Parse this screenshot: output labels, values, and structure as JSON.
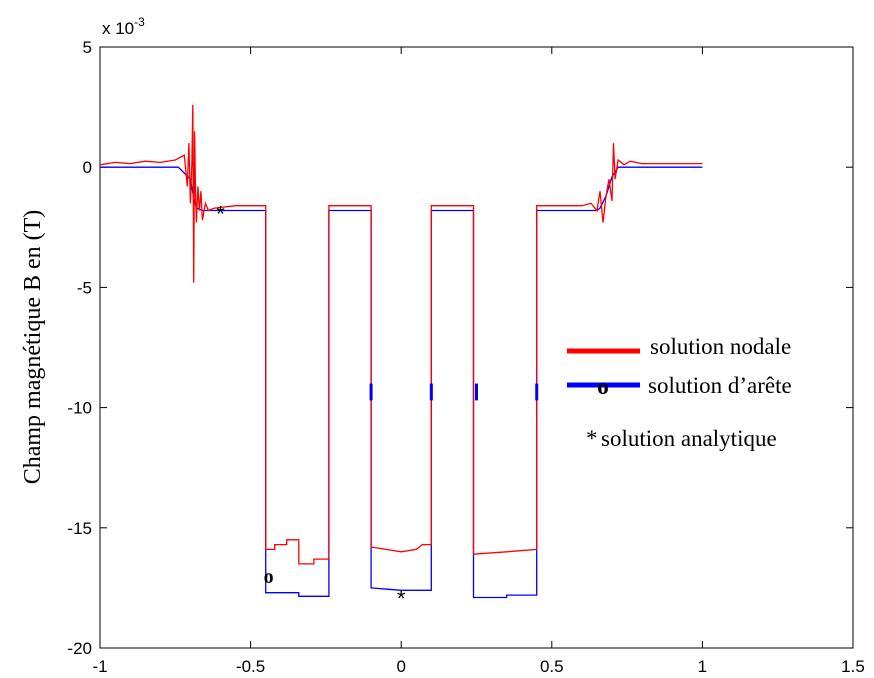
{
  "chart_data": {
    "type": "line",
    "ylabel": "Champ magnétique B en (T)",
    "xlabel": "",
    "multiplier_text": "x 10",
    "multiplier_exp": "-3",
    "xlim": [
      -1,
      1.5
    ],
    "ylim": [
      -20,
      5
    ],
    "xticks": [
      "-1",
      "-0.5",
      "0",
      "0.5",
      "1",
      "1.5"
    ],
    "yticks": [
      "5",
      "0",
      "-5",
      "-10",
      "-15",
      "-20"
    ],
    "grid": false,
    "legend_position": "right",
    "colors": {
      "nodal": "#ff0000",
      "arete": "#0000ff",
      "marker": "#000000"
    },
    "series": [
      {
        "name": "solution nodale",
        "color": "#ff0000",
        "points": [
          [
            -1.0,
            0.1
          ],
          [
            -0.95,
            0.2
          ],
          [
            -0.9,
            0.15
          ],
          [
            -0.85,
            0.25
          ],
          [
            -0.8,
            0.2
          ],
          [
            -0.75,
            0.3
          ],
          [
            -0.72,
            0.5
          ],
          [
            -0.71,
            -0.8
          ],
          [
            -0.705,
            1.0
          ],
          [
            -0.7,
            -1.5
          ],
          [
            -0.695,
            0.2
          ],
          [
            -0.692,
            2.6
          ],
          [
            -0.689,
            -4.8
          ],
          [
            -0.686,
            1.5
          ],
          [
            -0.683,
            -1.0
          ],
          [
            -0.68,
            -2.3
          ],
          [
            -0.675,
            -0.8
          ],
          [
            -0.67,
            -1.8
          ],
          [
            -0.665,
            -1.0
          ],
          [
            -0.66,
            -2.2
          ],
          [
            -0.65,
            -1.5
          ],
          [
            -0.64,
            -1.8
          ],
          [
            -0.62,
            -1.7
          ],
          [
            -0.55,
            -1.6
          ],
          [
            -0.45,
            -1.6
          ],
          [
            -0.45,
            -15.9
          ],
          [
            -0.42,
            -15.9
          ],
          [
            -0.42,
            -15.7
          ],
          [
            -0.38,
            -15.7
          ],
          [
            -0.38,
            -15.5
          ],
          [
            -0.34,
            -15.5
          ],
          [
            -0.34,
            -16.5
          ],
          [
            -0.29,
            -16.5
          ],
          [
            -0.29,
            -16.3
          ],
          [
            -0.24,
            -16.3
          ],
          [
            -0.24,
            -1.6
          ],
          [
            -0.1,
            -1.6
          ],
          [
            -0.1,
            -15.8
          ],
          [
            -0.05,
            -15.9
          ],
          [
            0.0,
            -16.0
          ],
          [
            0.05,
            -15.9
          ],
          [
            0.07,
            -15.7
          ],
          [
            0.1,
            -15.7
          ],
          [
            0.1,
            -1.6
          ],
          [
            0.24,
            -1.6
          ],
          [
            0.24,
            -16.1
          ],
          [
            0.35,
            -16.0
          ],
          [
            0.45,
            -15.9
          ],
          [
            0.45,
            -1.6
          ],
          [
            0.6,
            -1.6
          ],
          [
            0.63,
            -1.5
          ],
          [
            0.65,
            -1.8
          ],
          [
            0.66,
            -1.0
          ],
          [
            0.67,
            -2.3
          ],
          [
            0.68,
            -1.2
          ],
          [
            0.69,
            -0.5
          ],
          [
            0.7,
            -1.4
          ],
          [
            0.705,
            1.0
          ],
          [
            0.71,
            -0.5
          ],
          [
            0.72,
            0.3
          ],
          [
            0.74,
            0.1
          ],
          [
            0.76,
            0.25
          ],
          [
            0.8,
            0.15
          ],
          [
            0.9,
            0.15
          ],
          [
            1.0,
            0.15
          ]
        ]
      },
      {
        "name": "solution d’arête",
        "color": "#0000ff",
        "points": [
          [
            -1.0,
            0.0
          ],
          [
            -0.74,
            0.0
          ],
          [
            -0.7,
            -0.5
          ],
          [
            -0.69,
            -1.2
          ],
          [
            -0.68,
            -1.7
          ],
          [
            -0.66,
            -1.8
          ],
          [
            -0.45,
            -1.8
          ],
          [
            -0.45,
            -17.7
          ],
          [
            -0.34,
            -17.7
          ],
          [
            -0.34,
            -17.85
          ],
          [
            -0.24,
            -17.85
          ],
          [
            -0.24,
            -1.8
          ],
          [
            -0.1,
            -1.8
          ],
          [
            -0.1,
            -17.5
          ],
          [
            0.0,
            -17.6
          ],
          [
            0.1,
            -17.6
          ],
          [
            0.1,
            -1.8
          ],
          [
            0.24,
            -1.8
          ],
          [
            0.24,
            -17.9
          ],
          [
            0.35,
            -17.9
          ],
          [
            0.35,
            -17.8
          ],
          [
            0.45,
            -17.8
          ],
          [
            0.45,
            -1.8
          ],
          [
            0.65,
            -1.8
          ],
          [
            0.66,
            -1.7
          ],
          [
            0.68,
            -1.2
          ],
          [
            0.7,
            -0.4
          ],
          [
            0.72,
            0.0
          ],
          [
            1.0,
            0.0
          ]
        ]
      }
    ],
    "blue_ticks": [
      {
        "x": -0.1,
        "y": [
          -9.0,
          -9.7
        ]
      },
      {
        "x": 0.1,
        "y": [
          -9.0,
          -9.7
        ]
      },
      {
        "x": 0.25,
        "y": [
          -9.0,
          -9.7
        ]
      },
      {
        "x": 0.45,
        "y": [
          -9.0,
          -9.7
        ]
      }
    ],
    "markers": [
      {
        "symbol": "*",
        "x": -0.6,
        "y": -1.8
      },
      {
        "symbol": "*",
        "x": 0.0,
        "y": -17.8
      },
      {
        "symbol": "o",
        "x": -0.44,
        "y": -17.0
      }
    ],
    "legend": [
      {
        "label": "solution nodale",
        "color": "#ff0000",
        "marker": ""
      },
      {
        "label": "solution d’arête",
        "color": "#0000ff",
        "marker": "o"
      },
      {
        "label": "solution analytique",
        "color": "",
        "marker": "*"
      }
    ]
  }
}
